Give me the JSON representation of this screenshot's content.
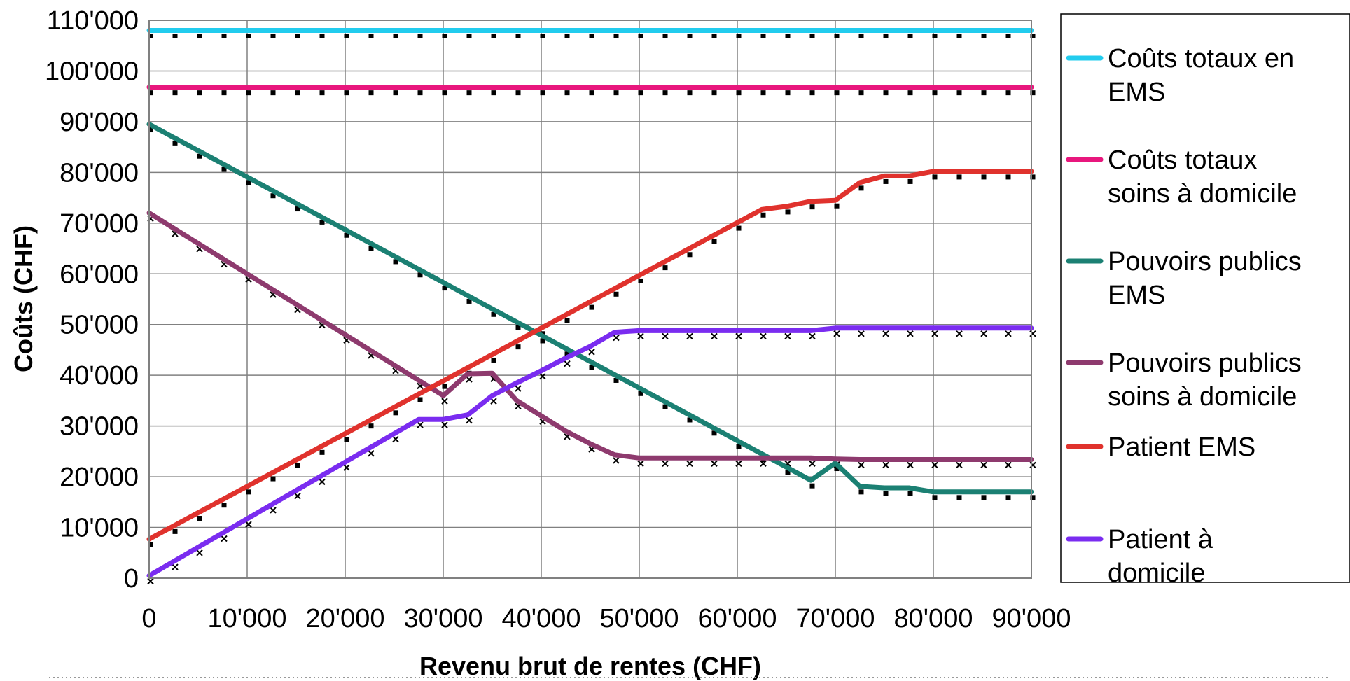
{
  "chart_data": {
    "type": "line",
    "title": "",
    "xlabel": "Revenu brut de rentes (CHF)",
    "ylabel": "Coûts (CHF)",
    "xlim": [
      0,
      90000
    ],
    "ylim": [
      0,
      110000
    ],
    "grid": true,
    "legend_position": "right",
    "x_tick_labels": [
      "0",
      "10'000",
      "20'000",
      "30'000",
      "40'000",
      "50'000",
      "60'000",
      "70'000",
      "80'000",
      "90'000"
    ],
    "y_tick_labels": [
      "0",
      "10'000",
      "20'000",
      "30'000",
      "40'000",
      "50'000",
      "60'000",
      "70'000",
      "80'000",
      "90'000",
      "100'000",
      "110'000"
    ],
    "x": [
      0,
      2500,
      5000,
      7500,
      10000,
      12500,
      15000,
      17500,
      20000,
      22500,
      25000,
      27500,
      30000,
      32500,
      35000,
      37500,
      40000,
      42500,
      45000,
      47500,
      50000,
      52500,
      55000,
      57500,
      60000,
      62500,
      65000,
      67500,
      70000,
      72500,
      75000,
      77500,
      80000,
      82500,
      85000,
      87500,
      90000
    ],
    "series": [
      {
        "name": "Coûts totaux en EMS",
        "color": "#22ccee",
        "values": [
          108000,
          108000,
          108000,
          108000,
          108000,
          108000,
          108000,
          108000,
          108000,
          108000,
          108000,
          108000,
          108000,
          108000,
          108000,
          108000,
          108000,
          108000,
          108000,
          108000,
          108000,
          108000,
          108000,
          108000,
          108000,
          108000,
          108000,
          108000,
          108000,
          108000,
          108000,
          108000,
          108000,
          108000,
          108000,
          108000,
          108000
        ]
      },
      {
        "name": "Coûts totaux soins à domicile",
        "color": "#e8177d",
        "values": [
          96800,
          96800,
          96800,
          96800,
          96800,
          96800,
          96800,
          96800,
          96800,
          96800,
          96800,
          96800,
          96800,
          96800,
          96800,
          96800,
          96800,
          96800,
          96800,
          96800,
          96800,
          96800,
          96800,
          96800,
          96800,
          96800,
          96800,
          96800,
          96800,
          96800,
          96800,
          96800,
          96800,
          96800,
          96800,
          96800,
          96800
        ]
      },
      {
        "name": "Pouvoirs publics EMS",
        "color": "#1b8073",
        "values": [
          89500,
          86900,
          84300,
          81700,
          79100,
          76500,
          73900,
          71300,
          68700,
          66100,
          63500,
          60900,
          58300,
          55700,
          53100,
          50500,
          47900,
          45300,
          42700,
          40100,
          37500,
          34900,
          32300,
          29700,
          27100,
          24500,
          21900,
          19300,
          22700,
          18100,
          17800,
          17800,
          17000,
          17000,
          17000,
          17000,
          17000
        ]
      },
      {
        "name": "Pouvoirs publics soins à domicile",
        "color": "#8e3a6e",
        "values": [
          72000,
          69000,
          66000,
          63000,
          60000,
          57000,
          54000,
          51000,
          48000,
          45000,
          42000,
          39000,
          36000,
          40300,
          40400,
          35000,
          32000,
          29000,
          26500,
          24300,
          23700,
          23700,
          23700,
          23700,
          23700,
          23700,
          23700,
          23700,
          23500,
          23400,
          23400,
          23400,
          23400,
          23400,
          23400,
          23400,
          23400
        ]
      },
      {
        "name": "Patient EMS",
        "color": "#e0322d",
        "values": [
          7700,
          10300,
          12900,
          15500,
          18100,
          20700,
          23300,
          25900,
          28500,
          31100,
          33700,
          36300,
          38900,
          41500,
          44100,
          46700,
          49300,
          51900,
          54500,
          57100,
          59700,
          62300,
          64900,
          67500,
          70100,
          72700,
          73300,
          74300,
          74500,
          78000,
          79300,
          79300,
          80200,
          80200,
          80200,
          80200,
          80200
        ]
      },
      {
        "name": "Patient à domicile",
        "color": "#7a2cf0",
        "values": [
          500,
          3300,
          6100,
          8900,
          11700,
          14500,
          17300,
          20100,
          22900,
          25700,
          28500,
          31300,
          31300,
          32200,
          36000,
          38500,
          40900,
          43400,
          45700,
          48500,
          48800,
          48800,
          48800,
          48800,
          48800,
          48800,
          48800,
          48800,
          49300,
          49300,
          49300,
          49300,
          49300,
          49300,
          49300,
          49300,
          49300
        ]
      }
    ]
  }
}
